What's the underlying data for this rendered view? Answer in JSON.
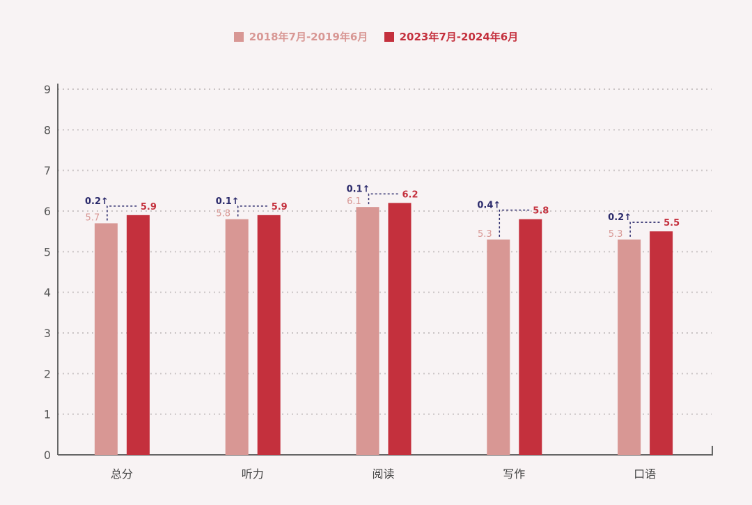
{
  "chart_data": {
    "type": "bar",
    "title": "",
    "xlabel": "",
    "ylabel": "",
    "ylim": [
      0,
      9
    ],
    "yticks": [
      "0",
      "1",
      "2",
      "3",
      "4",
      "5",
      "6",
      "7",
      "8",
      "9"
    ],
    "grid": true,
    "legend_position": "top-center",
    "categories": [
      "总分",
      "听力",
      "阅读",
      "写作",
      "口语"
    ],
    "series": [
      {
        "name": "2018年7月-2019年6月",
        "color": "#d89794",
        "values": [
          5.7,
          5.8,
          6.1,
          5.3,
          5.3
        ],
        "labels": [
          "5.7",
          "5.8",
          "6.1",
          "5.3",
          "5.3"
        ]
      },
      {
        "name": "2023年7月-2024年6月",
        "color": "#c4303d",
        "values": [
          5.9,
          5.9,
          6.2,
          5.8,
          5.5
        ],
        "labels": [
          "5.9",
          "5.9",
          "6.2",
          "5.8",
          "5.5"
        ]
      }
    ],
    "annotations": [
      "0.2↑",
      "0.1↑",
      "0.1↑",
      "0.4↑",
      "0.2↑"
    ],
    "annotation_color": "#2b2a6b"
  }
}
